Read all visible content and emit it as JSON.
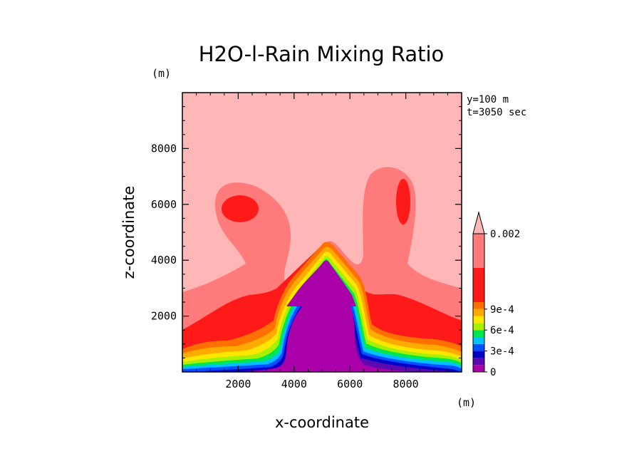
{
  "chart_data": {
    "type": "contour",
    "title": "H2O-l-Rain Mixing Ratio",
    "xlabel": "x-coordinate",
    "ylabel": "z-coordinate",
    "x_unit": "(m)",
    "y_unit": "(m)",
    "xlim": [
      0,
      10000
    ],
    "ylim": [
      0,
      10000
    ],
    "x_ticks": [
      2000,
      4000,
      6000,
      8000
    ],
    "y_ticks": [
      2000,
      4000,
      6000,
      8000
    ],
    "annotations": [
      "y=100 m",
      "t=3050 sec"
    ],
    "colorbar": {
      "placement": "right",
      "labels": [
        {
          "text": "0.002",
          "value": 0.002
        },
        {
          "text": "9e-4",
          "value": 0.0009
        },
        {
          "text": "6e-4",
          "value": 0.0006
        },
        {
          "text": "3e-4",
          "value": 0.0003
        },
        {
          "text": "0",
          "value": 0
        }
      ],
      "levels": [
        {
          "min": 0,
          "max": 0.0001,
          "color": "#aa00aa"
        },
        {
          "min": 0.0001,
          "max": 0.0002,
          "color": "#5a0ab0"
        },
        {
          "min": 0.0002,
          "max": 0.0003,
          "color": "#0000c8"
        },
        {
          "min": 0.0003,
          "max": 0.0004,
          "color": "#0050ff"
        },
        {
          "min": 0.0004,
          "max": 0.0005,
          "color": "#00c0ff"
        },
        {
          "min": 0.0005,
          "max": 0.0006,
          "color": "#00e650"
        },
        {
          "min": 0.0006,
          "max": 0.0007,
          "color": "#a8f000"
        },
        {
          "min": 0.0007,
          "max": 0.0008,
          "color": "#ffe600"
        },
        {
          "min": 0.0008,
          "max": 0.0009,
          "color": "#ffaa00"
        },
        {
          "min": 0.0009,
          "max": 0.001,
          "color": "#ff7000"
        },
        {
          "min": 0.001,
          "max": 0.0015,
          "color": "#ff1a1a"
        },
        {
          "min": 0.0015,
          "max": 0.002,
          "color": "#ff7a7a"
        },
        {
          "min": 0.002,
          "max": null,
          "color": "#ffb6b6"
        }
      ]
    },
    "regions": [
      {
        "level": ">0.002",
        "color": "#ffb6b6"
      },
      {
        "level": "0.0015-0.002",
        "color": "#ff7a7a"
      },
      {
        "level": "0.001-0.0015",
        "color": "#ff1a1a"
      },
      {
        "level": "<0.001 (core)",
        "color": "#aa00aa"
      }
    ]
  }
}
